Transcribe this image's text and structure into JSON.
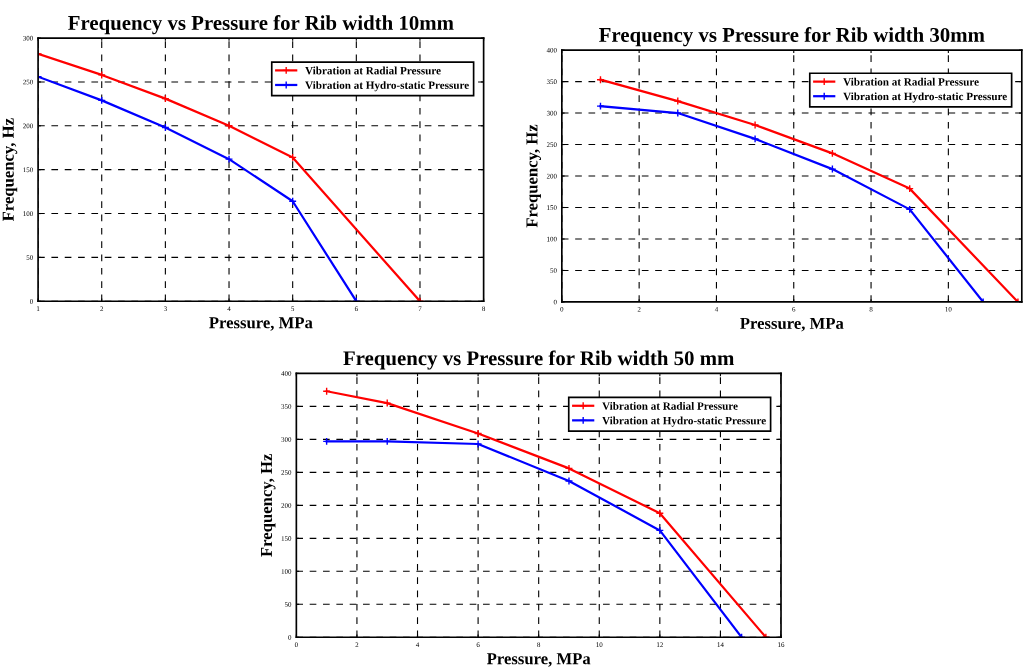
{
  "chart_data": [
    {
      "type": "line",
      "title": "Frequency vs Pressure for Rib width 10mm",
      "xlabel": "Pressure, MPa",
      "ylabel": "Frequency, Hz",
      "xlim": [
        1,
        8
      ],
      "xticks": [
        1,
        2,
        3,
        4,
        5,
        6,
        7,
        8
      ],
      "ylim": [
        0,
        300
      ],
      "yticks": [
        0,
        50,
        100,
        150,
        200,
        250,
        300
      ],
      "grid": true,
      "legend": "top right",
      "marker": "cross",
      "line_style": "solid",
      "series": [
        {
          "name": "Vibration at Radial Pressure",
          "color": "#ff0000",
          "x": [
            1,
            2,
            3,
            4,
            5,
            7
          ],
          "values": [
            282,
            258,
            231,
            200,
            164,
            0
          ]
        },
        {
          "name": "Vibration at Hydro-static Pressure",
          "color": "#0000ff",
          "x": [
            1,
            2,
            3,
            4,
            5,
            6
          ],
          "values": [
            256,
            229,
            198,
            162,
            114,
            0
          ]
        }
      ]
    },
    {
      "type": "line",
      "title": "Frequency vs Pressure for Rib width 30mm",
      "xlabel": "Pressure, MPa",
      "ylabel": "Frequency, Hz",
      "xlim": [
        0,
        11.9
      ],
      "xticks": [
        0,
        2,
        4,
        6,
        8,
        10
      ],
      "ylim": [
        0,
        400
      ],
      "yticks": [
        0,
        50,
        100,
        150,
        200,
        250,
        300,
        350,
        400
      ],
      "grid": true,
      "legend": "top right",
      "marker": "cross",
      "line_style": "solid",
      "series": [
        {
          "name": "Vibration at Radial Pressure",
          "color": "#ff0000",
          "x": [
            1,
            3,
            5,
            7,
            9,
            11.8
          ],
          "values": [
            353,
            319,
            281,
            236,
            180,
            0
          ]
        },
        {
          "name": "Vibration at Hydro-static Pressure",
          "color": "#0000ff",
          "x": [
            1,
            3,
            5,
            7,
            9,
            10.9
          ],
          "values": [
            311,
            300,
            259,
            211,
            147,
            0
          ]
        }
      ]
    },
    {
      "type": "line",
      "title": "Frequency vs Pressure for Rib width 50 mm",
      "xlabel": "Pressure, MPa",
      "ylabel": "Frequency, Hz",
      "xlim": [
        0,
        16
      ],
      "xticks": [
        0,
        2,
        4,
        6,
        8,
        10,
        12,
        14,
        16
      ],
      "ylim": [
        0,
        400
      ],
      "yticks": [
        0,
        50,
        100,
        150,
        200,
        250,
        300,
        350,
        400
      ],
      "grid": true,
      "legend": "top right",
      "marker": "cross",
      "line_style": "solid",
      "series": [
        {
          "name": "Vibration at Radial Pressure",
          "color": "#ff0000",
          "x": [
            1,
            3,
            6,
            9,
            12,
            15.5
          ],
          "values": [
            373,
            355,
            309,
            256,
            188,
            0
          ]
        },
        {
          "name": "Vibration at Hydro-static Pressure",
          "color": "#0000ff",
          "x": [
            1,
            3,
            6,
            9,
            12,
            14.7
          ],
          "values": [
            297,
            297,
            293,
            237,
            162,
            0
          ]
        }
      ]
    }
  ]
}
